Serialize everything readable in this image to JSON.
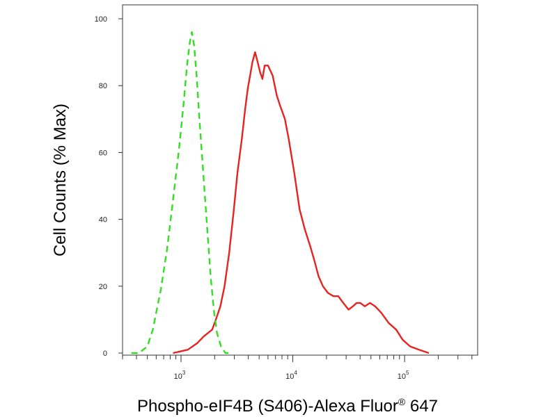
{
  "chart_data": {
    "type": "line",
    "xlabel": "Phospho-eIF4B (S406)-Alexa Fluor",
    "xlabel_sup": "®",
    "xlabel_suffix": " 647",
    "ylabel": "Cell Counts (% Max)",
    "x_scale": "log",
    "xlim": [
      300,
      450000
    ],
    "ylim": [
      0,
      100
    ],
    "y_ticks": [
      "0",
      "20",
      "40",
      "60",
      "80",
      "100"
    ],
    "x_ticks": [
      {
        "base": "10",
        "exp": "3",
        "value": 1000
      },
      {
        "base": "10",
        "exp": "4",
        "value": 10000
      },
      {
        "base": "10",
        "exp": "5",
        "value": 100000
      }
    ],
    "grid": false,
    "legend": "none",
    "series": [
      {
        "color": "#e8221e",
        "style": "solid",
        "points": [
          [
            850,
            0
          ],
          [
            1150,
            1
          ],
          [
            1400,
            3
          ],
          [
            1600,
            5
          ],
          [
            1900,
            7
          ],
          [
            2050,
            10
          ],
          [
            2250,
            14
          ],
          [
            2450,
            20
          ],
          [
            2700,
            30
          ],
          [
            2950,
            42
          ],
          [
            3200,
            54
          ],
          [
            3500,
            64
          ],
          [
            3750,
            73
          ],
          [
            3950,
            79
          ],
          [
            4150,
            83
          ],
          [
            4350,
            87
          ],
          [
            4600,
            90
          ],
          [
            4850,
            87
          ],
          [
            5100,
            84
          ],
          [
            5350,
            82
          ],
          [
            5600,
            86
          ],
          [
            6000,
            86
          ],
          [
            6600,
            83
          ],
          [
            7200,
            77
          ],
          [
            7700,
            74
          ],
          [
            8100,
            72
          ],
          [
            8500,
            70
          ],
          [
            9200,
            64
          ],
          [
            10300,
            54
          ],
          [
            11500,
            43
          ],
          [
            12800,
            37
          ],
          [
            14300,
            32
          ],
          [
            15500,
            28
          ],
          [
            17000,
            23
          ],
          [
            18600,
            20
          ],
          [
            20600,
            18
          ],
          [
            23100,
            17
          ],
          [
            25500,
            17
          ],
          [
            28300,
            15
          ],
          [
            31500,
            13
          ],
          [
            34500,
            14
          ],
          [
            37200,
            15
          ],
          [
            40200,
            15
          ],
          [
            44000,
            14
          ],
          [
            49000,
            15
          ],
          [
            54500,
            14
          ],
          [
            62000,
            12
          ],
          [
            72000,
            9
          ],
          [
            84000,
            7
          ],
          [
            96000,
            4
          ],
          [
            112000,
            2
          ],
          [
            135000,
            1
          ],
          [
            165000,
            0
          ]
        ]
      },
      {
        "color": "#33dd22",
        "style": "dashed",
        "points": [
          [
            360,
            0
          ],
          [
            420,
            0
          ],
          [
            500,
            2
          ],
          [
            560,
            7
          ],
          [
            660,
            19
          ],
          [
            750,
            31
          ],
          [
            850,
            46
          ],
          [
            960,
            61
          ],
          [
            1050,
            74
          ],
          [
            1140,
            87
          ],
          [
            1200,
            93
          ],
          [
            1250,
            96
          ],
          [
            1310,
            92
          ],
          [
            1380,
            83
          ],
          [
            1460,
            70
          ],
          [
            1580,
            54
          ],
          [
            1700,
            39
          ],
          [
            1850,
            22
          ],
          [
            1980,
            12
          ],
          [
            2100,
            6
          ],
          [
            2280,
            2
          ],
          [
            2500,
            0
          ],
          [
            2800,
            0
          ]
        ]
      }
    ]
  }
}
